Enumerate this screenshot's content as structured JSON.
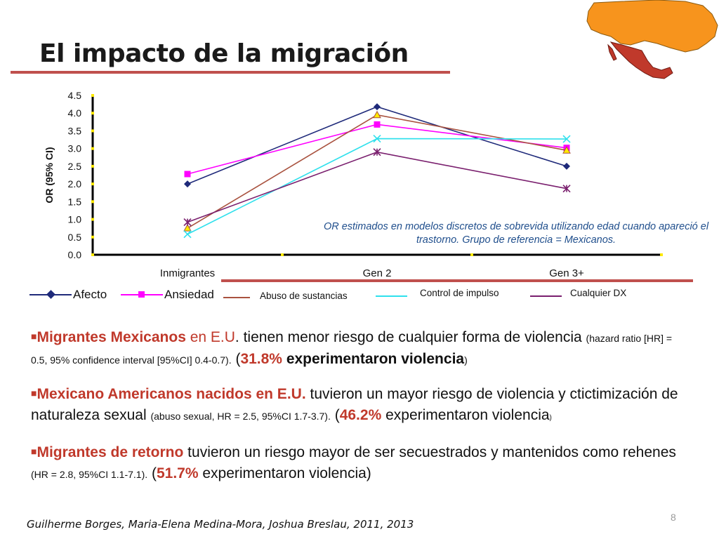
{
  "slide": {
    "title": "El impacto de la migración",
    "page_number": "8",
    "citation": "Guilherme Borges, Maria-Elena Medina-Mora, Joshua Breslau, 2011, 2013"
  },
  "chart_data": {
    "type": "line",
    "title": "",
    "xlabel": "",
    "ylabel": "OR (95% CI)",
    "categories": [
      "Inmigrantes",
      "Gen 2",
      "Gen 3+"
    ],
    "ylim": [
      0,
      4.5
    ],
    "yticks": [
      "0.0",
      "0.5",
      "1.0",
      "1.5",
      "2.0",
      "2.5",
      "3.0",
      "3.5",
      "4.0",
      "4.5"
    ],
    "grid": false,
    "legend_position": "bottom",
    "series": [
      {
        "name": "Afecto",
        "values": [
          2.0,
          4.18,
          2.5
        ],
        "color": "#1f2a7a",
        "marker": "diamond"
      },
      {
        "name": "Ansiedad",
        "values": [
          2.28,
          3.68,
          3.02
        ],
        "color": "#ff00ff",
        "marker": "square"
      },
      {
        "name": "Abuso de sustancias",
        "values": [
          0.75,
          3.95,
          2.95
        ],
        "color": "#a9523f",
        "marker": "triangle"
      },
      {
        "name": "Control de impulso",
        "values": [
          0.58,
          3.28,
          3.27
        ],
        "color": "#2fe0ec",
        "marker": "x"
      },
      {
        "name": "Cualquier DX",
        "values": [
          0.92,
          2.9,
          1.87
        ],
        "color": "#7a1f6e",
        "marker": "star"
      }
    ],
    "annotation": "OR estimados en modelos discretos de sobrevida utilizando edad cuando apareció el trastorno. Grupo de referencia = Mexicanos."
  },
  "bullets": [
    {
      "lead": "Migrantes Mexicanos",
      "mid": " en E.U",
      "dot": ".",
      "text": " tienen menor riesgo de cualquier forma de violencia ",
      "small": "(hazard ratio [HR] = 0.5, 95% confidence interval [95%CI] 0.4-0.7).",
      "paren_open": "  (",
      "pct": "31.8%",
      "tail": " experimentaron violencia",
      "paren_close": ")"
    },
    {
      "lead": "Mexicano Americanos nacidos en E.U.",
      "text": " tuvieron un mayor riesgo de violencia y ctictimización de naturaleza sexual ",
      "small": "(abuso sexual, HR = 2.5, 95%CI 1.7-3.7).",
      "paren_open": " (",
      "pct": "46.2%",
      "tail": " experimentaron violencia",
      "paren_close": ")"
    },
    {
      "lead": "Migrantes de retorno",
      "text": " tuvieron un riesgo mayor de ser secuestrados y mantenidos como rehenes ",
      "small": "(HR = 2.8, 95%CI 1.1-7.1).",
      "paren_open": " (",
      "pct": "51.7%",
      "tail": " experimentaron violencia)",
      "paren_close": ""
    }
  ],
  "colors": {
    "accent_red": "#c0504d",
    "bullet_red": "#c0392b",
    "text_blue": "#1f4e8c",
    "map_orange": "#f7941d",
    "map_mexico": "#c0392b"
  }
}
